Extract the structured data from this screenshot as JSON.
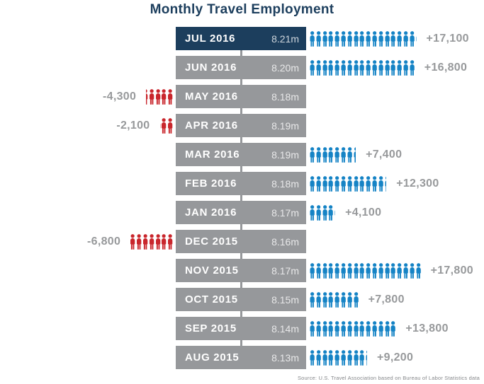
{
  "title": "Monthly Travel Employment",
  "source": "Source: U.S. Travel Association based on Bureau of Labor Statistics data",
  "colors": {
    "navy": "#1c3e5d",
    "row_gray": "#96989b",
    "icon_blue": "#1583c5",
    "icon_red": "#c9262c",
    "change_text": "#97999b",
    "month_text": "#ffffff",
    "employment_text": "rgba(255,255,255,0.78)",
    "source_text": "#85878a",
    "background": "#ffffff"
  },
  "chart_data": {
    "type": "bar",
    "subtype": "pictogram",
    "title": "Monthly Travel Employment",
    "icon_unit": 1000,
    "legend_position": "none",
    "rows": [
      {
        "month": "JUL 2016",
        "employment": "8.21m",
        "change": 17100,
        "change_label": "+17,100",
        "highlight": true
      },
      {
        "month": "JUN 2016",
        "employment": "8.20m",
        "change": 16800,
        "change_label": "+16,800",
        "highlight": false
      },
      {
        "month": "MAY 2016",
        "employment": "8.18m",
        "change": -4300,
        "change_label": "-4,300",
        "highlight": false
      },
      {
        "month": "APR 2016",
        "employment": "8.19m",
        "change": -2100,
        "change_label": "-2,100",
        "highlight": false
      },
      {
        "month": "MAR 2016",
        "employment": "8.19m",
        "change": 7400,
        "change_label": "+7,400",
        "highlight": false
      },
      {
        "month": "FEB 2016",
        "employment": "8.18m",
        "change": 12300,
        "change_label": "+12,300",
        "highlight": false
      },
      {
        "month": "JAN 2016",
        "employment": "8.17m",
        "change": 4100,
        "change_label": "+4,100",
        "highlight": false
      },
      {
        "month": "DEC 2015",
        "employment": "8.16m",
        "change": -6800,
        "change_label": "-6,800",
        "highlight": false
      },
      {
        "month": "NOV 2015",
        "employment": "8.17m",
        "change": 17800,
        "change_label": "+17,800",
        "highlight": false
      },
      {
        "month": "OCT 2015",
        "employment": "8.15m",
        "change": 7800,
        "change_label": "+7,800",
        "highlight": false
      },
      {
        "month": "SEP 2015",
        "employment": "8.14m",
        "change": 13800,
        "change_label": "+13,800",
        "highlight": false
      },
      {
        "month": "AUG 2015",
        "employment": "8.13m",
        "change": 9200,
        "change_label": "+9,200",
        "highlight": false
      }
    ]
  }
}
